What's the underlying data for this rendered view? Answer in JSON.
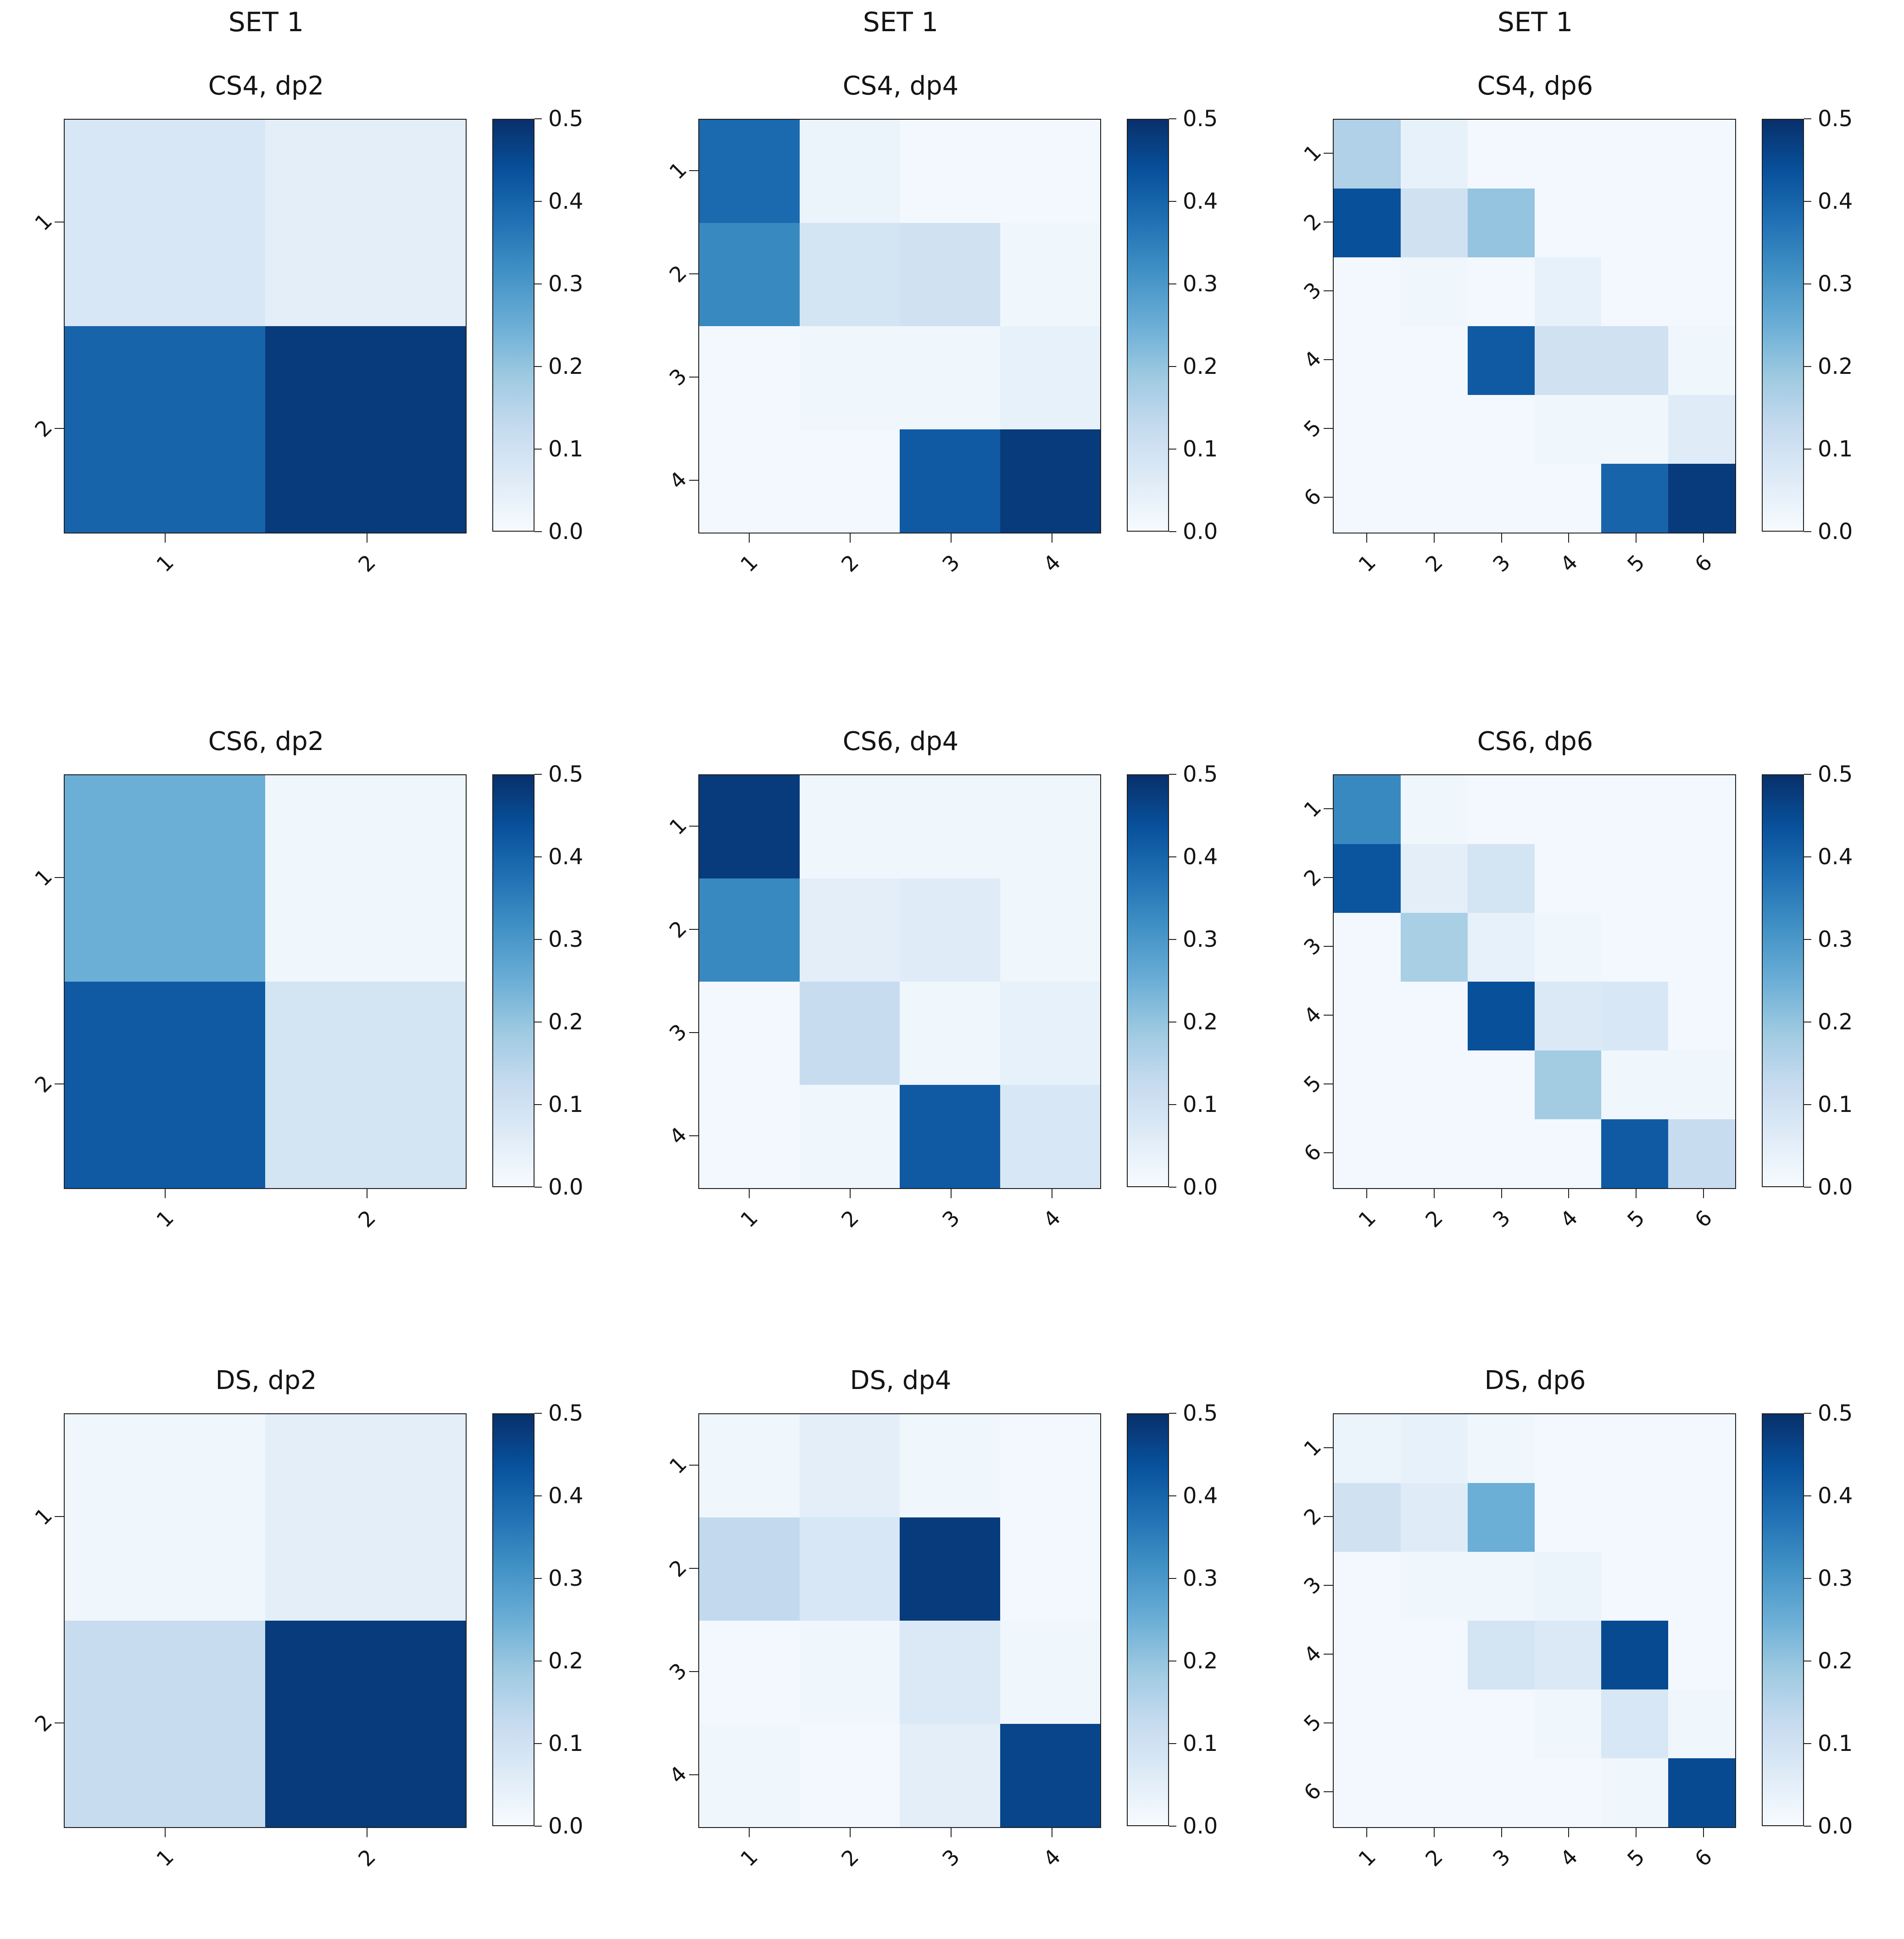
{
  "figure": {
    "background": "#ffffff"
  },
  "colorbar": {
    "ticks": [
      "0.0",
      "0.1",
      "0.2",
      "0.3",
      "0.4",
      "0.5"
    ],
    "vmin": 0.0,
    "vmax": 0.5
  },
  "style": {
    "colormap": "Blues",
    "text_color": "#141414",
    "spine_color": "#1f1f1f",
    "colormap_stops": [
      {
        "t": 0.0,
        "c": "#f7fbff"
      },
      {
        "t": 0.125,
        "c": "#deebf7"
      },
      {
        "t": 0.25,
        "c": "#c6dbef"
      },
      {
        "t": 0.375,
        "c": "#9ecae1"
      },
      {
        "t": 0.5,
        "c": "#6baed6"
      },
      {
        "t": 0.625,
        "c": "#4292c6"
      },
      {
        "t": 0.75,
        "c": "#2171b5"
      },
      {
        "t": 0.875,
        "c": "#08519c"
      },
      {
        "t": 1.0,
        "c": "#08306b"
      }
    ]
  },
  "chart_data": [
    {
      "type": "heatmap",
      "suptitle": "SET 1",
      "title": "CS4, dp2",
      "x_ticks": [
        "1",
        "2"
      ],
      "y_ticks": [
        "1",
        "2"
      ],
      "vmin": 0.0,
      "vmax": 0.5,
      "colormap": "Blues",
      "values": [
        [
          0.08,
          0.05
        ],
        [
          0.4,
          0.48
        ]
      ]
    },
    {
      "type": "heatmap",
      "suptitle": "SET 1",
      "title": "CS4, dp4",
      "x_ticks": [
        "1",
        "2",
        "3",
        "4"
      ],
      "y_ticks": [
        "1",
        "2",
        "3",
        "4"
      ],
      "vmin": 0.0,
      "vmax": 0.5,
      "colormap": "Blues",
      "values": [
        [
          0.39,
          0.03,
          0.01,
          0.01
        ],
        [
          0.33,
          0.09,
          0.1,
          0.02
        ],
        [
          0.01,
          0.02,
          0.02,
          0.04
        ],
        [
          0.01,
          0.01,
          0.42,
          0.48
        ]
      ]
    },
    {
      "type": "heatmap",
      "suptitle": "SET 1",
      "title": "CS4, dp6",
      "x_ticks": [
        "1",
        "2",
        "3",
        "4",
        "5",
        "6"
      ],
      "y_ticks": [
        "1",
        "2",
        "3",
        "4",
        "5",
        "6"
      ],
      "vmin": 0.0,
      "vmax": 0.5,
      "colormap": "Blues",
      "values": [
        [
          0.16,
          0.04,
          0.01,
          0.01,
          0.01,
          0.01
        ],
        [
          0.44,
          0.1,
          0.2,
          0.01,
          0.01,
          0.01
        ],
        [
          0.01,
          0.02,
          0.01,
          0.04,
          0.01,
          0.01
        ],
        [
          0.01,
          0.01,
          0.42,
          0.1,
          0.1,
          0.02
        ],
        [
          0.01,
          0.01,
          0.01,
          0.02,
          0.02,
          0.06
        ],
        [
          0.01,
          0.01,
          0.01,
          0.01,
          0.4,
          0.48
        ]
      ]
    },
    {
      "type": "heatmap",
      "title": "CS6, dp2",
      "x_ticks": [
        "1",
        "2"
      ],
      "y_ticks": [
        "1",
        "2"
      ],
      "vmin": 0.0,
      "vmax": 0.5,
      "colormap": "Blues",
      "values": [
        [
          0.25,
          0.02
        ],
        [
          0.42,
          0.09
        ]
      ]
    },
    {
      "type": "heatmap",
      "title": "CS6, dp4",
      "x_ticks": [
        "1",
        "2",
        "3",
        "4"
      ],
      "y_ticks": [
        "1",
        "2",
        "3",
        "4"
      ],
      "vmin": 0.0,
      "vmax": 0.5,
      "colormap": "Blues",
      "values": [
        [
          0.48,
          0.02,
          0.02,
          0.02
        ],
        [
          0.33,
          0.05,
          0.06,
          0.02
        ],
        [
          0.01,
          0.12,
          0.02,
          0.04
        ],
        [
          0.01,
          0.02,
          0.42,
          0.08
        ]
      ]
    },
    {
      "type": "heatmap",
      "title": "CS6, dp6",
      "x_ticks": [
        "1",
        "2",
        "3",
        "4",
        "5",
        "6"
      ],
      "y_ticks": [
        "1",
        "2",
        "3",
        "4",
        "5",
        "6"
      ],
      "vmin": 0.0,
      "vmax": 0.5,
      "colormap": "Blues",
      "values": [
        [
          0.33,
          0.02,
          0.01,
          0.01,
          0.01,
          0.01
        ],
        [
          0.43,
          0.05,
          0.09,
          0.01,
          0.01,
          0.01
        ],
        [
          0.01,
          0.17,
          0.04,
          0.02,
          0.01,
          0.01
        ],
        [
          0.01,
          0.01,
          0.44,
          0.07,
          0.08,
          0.01
        ],
        [
          0.01,
          0.01,
          0.01,
          0.18,
          0.02,
          0.02
        ],
        [
          0.01,
          0.01,
          0.01,
          0.01,
          0.42,
          0.12
        ]
      ]
    },
    {
      "type": "heatmap",
      "title": "DS, dp2",
      "x_ticks": [
        "1",
        "2"
      ],
      "y_ticks": [
        "1",
        "2"
      ],
      "vmin": 0.0,
      "vmax": 0.5,
      "colormap": "Blues",
      "values": [
        [
          0.02,
          0.05
        ],
        [
          0.12,
          0.48
        ]
      ]
    },
    {
      "type": "heatmap",
      "title": "DS, dp4",
      "x_ticks": [
        "1",
        "2",
        "3",
        "4"
      ],
      "y_ticks": [
        "1",
        "2",
        "3",
        "4"
      ],
      "vmin": 0.0,
      "vmax": 0.5,
      "colormap": "Blues",
      "values": [
        [
          0.02,
          0.05,
          0.02,
          0.01
        ],
        [
          0.13,
          0.08,
          0.48,
          0.01
        ],
        [
          0.01,
          0.02,
          0.07,
          0.02
        ],
        [
          0.02,
          0.01,
          0.05,
          0.46
        ]
      ]
    },
    {
      "type": "heatmap",
      "title": "DS, dp6",
      "x_ticks": [
        "1",
        "2",
        "3",
        "4",
        "5",
        "6"
      ],
      "y_ticks": [
        "1",
        "2",
        "3",
        "4",
        "5",
        "6"
      ],
      "vmin": 0.0,
      "vmax": 0.5,
      "colormap": "Blues",
      "values": [
        [
          0.03,
          0.04,
          0.02,
          0.01,
          0.01,
          0.01
        ],
        [
          0.1,
          0.06,
          0.25,
          0.01,
          0.01,
          0.01
        ],
        [
          0.01,
          0.02,
          0.02,
          0.03,
          0.01,
          0.01
        ],
        [
          0.01,
          0.01,
          0.09,
          0.07,
          0.45,
          0.01
        ],
        [
          0.01,
          0.01,
          0.01,
          0.02,
          0.08,
          0.02
        ],
        [
          0.01,
          0.01,
          0.01,
          0.01,
          0.02,
          0.45
        ]
      ]
    }
  ]
}
